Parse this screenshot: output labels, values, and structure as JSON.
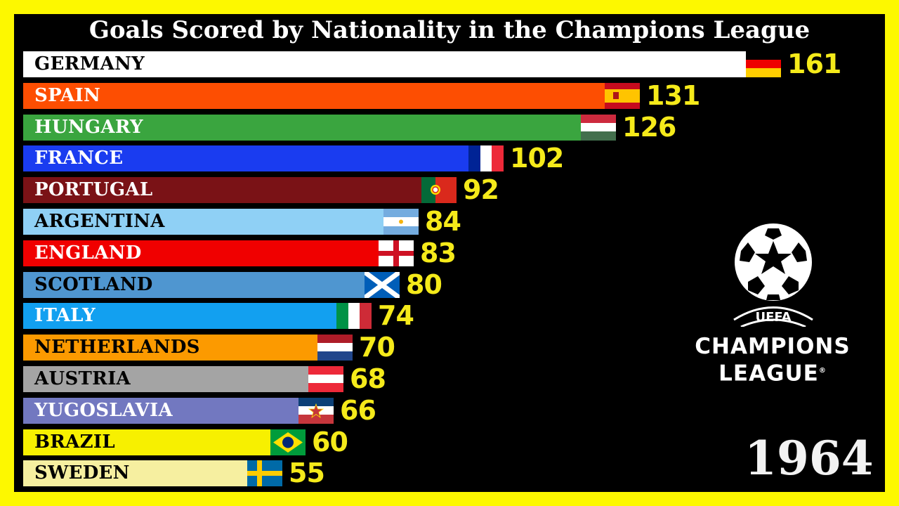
{
  "chart_data": {
    "type": "bar",
    "orientation": "horizontal",
    "title": "Goals Scored by Nationality in the Champions League",
    "year": "1964",
    "xlabel": "",
    "ylabel": "",
    "grid": false,
    "legend": "none",
    "categories": [
      "GERMANY",
      "SPAIN",
      "HUNGARY",
      "FRANCE",
      "PORTUGAL",
      "ARGENTINA",
      "ENGLAND",
      "SCOTLAND",
      "ITALY",
      "NETHERLANDS",
      "AUSTRIA",
      "YUGOSLAVIA",
      "BRAZIL",
      "SWEDEN"
    ],
    "values": [
      161,
      131,
      126,
      102,
      92,
      84,
      83,
      80,
      74,
      70,
      68,
      66,
      60,
      55
    ],
    "bars": [
      {
        "label": "GERMANY",
        "value": 161,
        "color": "#ffffff",
        "text_color": "#000000",
        "flag": "germany"
      },
      {
        "label": "SPAIN",
        "value": 131,
        "color": "#fd4e02",
        "text_color": "#ffffff",
        "flag": "spain"
      },
      {
        "label": "HUNGARY",
        "value": 126,
        "color": "#3aa53f",
        "text_color": "#ffffff",
        "flag": "hungary"
      },
      {
        "label": "FRANCE",
        "value": 102,
        "color": "#1a3cf0",
        "text_color": "#ffffff",
        "flag": "france"
      },
      {
        "label": "PORTUGAL",
        "value": 92,
        "color": "#7a1216",
        "text_color": "#ffffff",
        "flag": "portugal"
      },
      {
        "label": "ARGENTINA",
        "value": 84,
        "color": "#8fd0f5",
        "text_color": "#000000",
        "flag": "argentina"
      },
      {
        "label": "ENGLAND",
        "value": 83,
        "color": "#f00000",
        "text_color": "#ffffff",
        "flag": "england"
      },
      {
        "label": "SCOTLAND",
        "value": 80,
        "color": "#4f96d0",
        "text_color": "#000000",
        "flag": "scotland"
      },
      {
        "label": "ITALY",
        "value": 74,
        "color": "#12a0f0",
        "text_color": "#ffffff",
        "flag": "italy"
      },
      {
        "label": "NETHERLANDS",
        "value": 70,
        "color": "#fc9a00",
        "text_color": "#000000",
        "flag": "netherlands"
      },
      {
        "label": "AUSTRIA",
        "value": 68,
        "color": "#a4a4a4",
        "text_color": "#000000",
        "flag": "austria"
      },
      {
        "label": "YUGOSLAVIA",
        "value": 66,
        "color": "#7278c0",
        "text_color": "#ffffff",
        "flag": "yugoslavia"
      },
      {
        "label": "BRAZIL",
        "value": 60,
        "color": "#f7f000",
        "text_color": "#000000",
        "flag": "brazil"
      },
      {
        "label": "SWEDEN",
        "value": 55,
        "color": "#f6efa0",
        "text_color": "#000000",
        "flag": "sweden"
      }
    ],
    "value_label_color": "#f5ea1a"
  },
  "logo": {
    "icon": "ucl-starball-icon",
    "uefa": "UEFA",
    "line1": "CHAMPIONS",
    "line2": "LEAGUE",
    "registered": "®"
  },
  "colors": {
    "frame": "#fdf800",
    "background": "#000000",
    "title": "#ffffff",
    "year": "#f2f2f2"
  }
}
